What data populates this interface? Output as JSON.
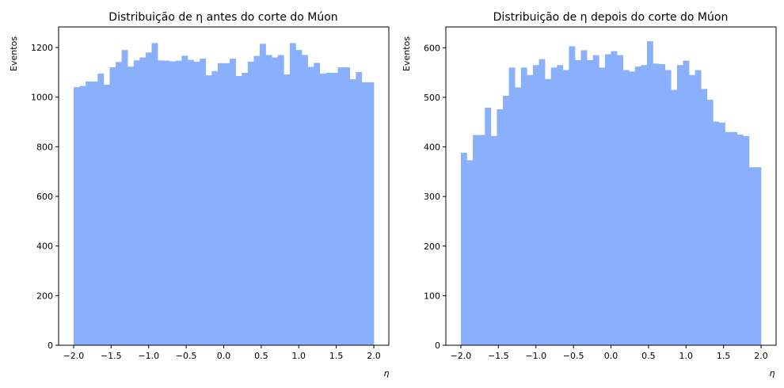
{
  "chart_data": [
    {
      "type": "bar",
      "title": "Distribuição de η antes do corte do Múon",
      "xlabel": "η",
      "ylabel": "Eventos",
      "xlim": [
        -2.2,
        2.2
      ],
      "ylim": [
        0,
        1283
      ],
      "xticks": [
        "−2.0",
        "−1.5",
        "−1.0",
        "−0.5",
        "0.0",
        "0.5",
        "1.0",
        "1.5",
        "2.0"
      ],
      "yticks": [
        "0",
        "200",
        "400",
        "600",
        "800",
        "1000",
        "1200"
      ],
      "bin_range": [
        -2.0,
        2.0
      ],
      "bins": 50,
      "color": "#8ab0fb",
      "values": [
        1040,
        1045,
        1063,
        1063,
        1095,
        1050,
        1120,
        1142,
        1190,
        1123,
        1148,
        1160,
        1180,
        1218,
        1148,
        1147,
        1144,
        1147,
        1167,
        1150,
        1143,
        1155,
        1088,
        1105,
        1137,
        1137,
        1155,
        1085,
        1098,
        1143,
        1166,
        1215,
        1170,
        1160,
        1170,
        1092,
        1218,
        1190,
        1170,
        1122,
        1138,
        1095,
        1098,
        1098,
        1120,
        1120,
        1072,
        1101,
        1060,
        1060
      ]
    },
    {
      "type": "bar",
      "title": "Distribuição de η depois do corte do Múon",
      "xlabel": "η",
      "ylabel": "Eventos",
      "xlim": [
        -2.2,
        2.2
      ],
      "ylim": [
        0,
        642
      ],
      "xticks": [
        "−2.0",
        "−1.5",
        "−1.0",
        "−0.5",
        "0.0",
        "0.5",
        "1.0",
        "1.5",
        "2.0"
      ],
      "yticks": [
        "0",
        "100",
        "200",
        "300",
        "400",
        "500",
        "600"
      ],
      "bin_range": [
        -2.0,
        2.0
      ],
      "bins": 50,
      "color": "#8ab0fb",
      "values": [
        388,
        373,
        424,
        424,
        479,
        422,
        476,
        503,
        560,
        520,
        560,
        545,
        565,
        577,
        537,
        560,
        565,
        555,
        603,
        575,
        595,
        575,
        585,
        560,
        587,
        593,
        585,
        555,
        552,
        562,
        565,
        613,
        568,
        567,
        555,
        515,
        565,
        574,
        545,
        555,
        517,
        495,
        451,
        449,
        430,
        430,
        425,
        422,
        359,
        359
      ]
    }
  ]
}
